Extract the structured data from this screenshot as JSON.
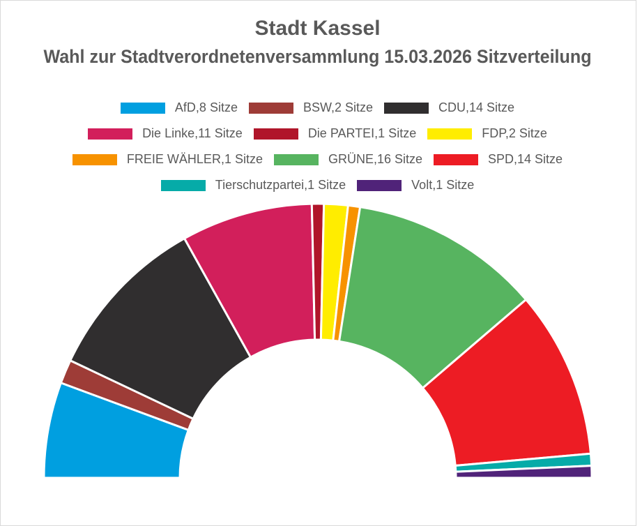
{
  "chart_data": {
    "type": "pie",
    "subtype": "half-donut",
    "title": "Stadt Kassel",
    "subtitle": "Wahl zur Stadtverordnetenversammlung 15.03.2026 Sitzverteilung",
    "legend_position": "top",
    "series": [
      {
        "name": "AfD",
        "value": 8,
        "label": "AfD,8 Sitze",
        "color": "#009fe0"
      },
      {
        "name": "BSW",
        "value": 2,
        "label": "BSW,2 Sitze",
        "color": "#9e3c37"
      },
      {
        "name": "CDU",
        "value": 14,
        "label": "CDU,14 Sitze",
        "color": "#302e2f"
      },
      {
        "name": "Die Linke",
        "value": 11,
        "label": "Die Linke,11 Sitze",
        "color": "#d21f5b"
      },
      {
        "name": "Die PARTEI",
        "value": 1,
        "label": "Die PARTEI,1 Sitze",
        "color": "#b0152a"
      },
      {
        "name": "FDP",
        "value": 2,
        "label": "FDP,2 Sitze",
        "color": "#ffed00"
      },
      {
        "name": "FREIE WÄHLER",
        "value": 1,
        "label": "FREIE WÄHLER,1 Sitze",
        "color": "#f79200"
      },
      {
        "name": "GRÜNE",
        "value": 16,
        "label": "GRÜNE,16 Sitze",
        "color": "#57b460"
      },
      {
        "name": "SPD",
        "value": 14,
        "label": "SPD,14 Sitze",
        "color": "#ed1c24"
      },
      {
        "name": "Tierschutzpartei",
        "value": 1,
        "label": "Tierschutzpartei,1 Sitze",
        "color": "#06aba8"
      },
      {
        "name": "Volt",
        "value": 1,
        "label": "Volt,1 Sitze",
        "color": "#502379"
      }
    ]
  }
}
